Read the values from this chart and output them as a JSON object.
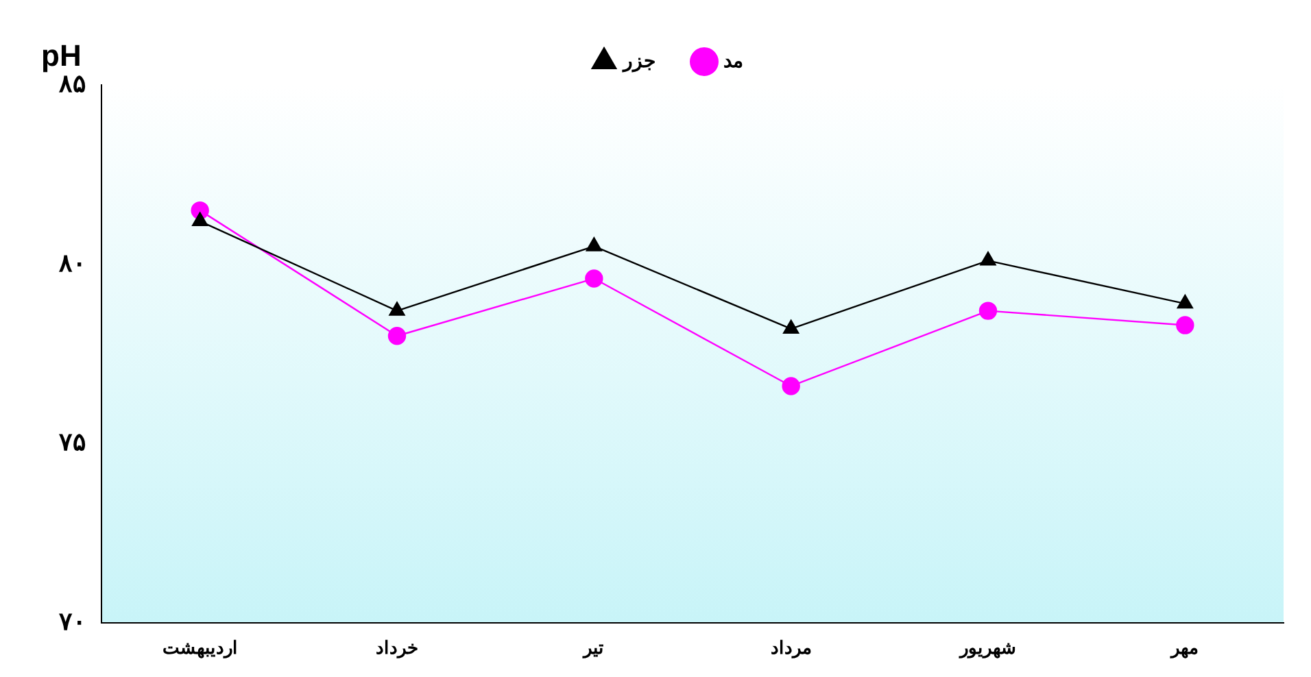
{
  "chart_data": {
    "type": "line",
    "ylabel": "pH",
    "categories": [
      "اردیبهشت",
      "خرداد",
      "تیر",
      "مرداد",
      "شهریور",
      "مهر"
    ],
    "series": [
      {
        "name": "جزر",
        "color": "#000000",
        "marker": "triangle",
        "values": [
          81.2,
          78.7,
          80.5,
          78.2,
          80.1,
          78.9
        ]
      },
      {
        "name": "مد",
        "color": "#ff00ff",
        "marker": "circle",
        "values": [
          81.5,
          78.0,
          79.6,
          76.6,
          78.7,
          78.3
        ]
      }
    ],
    "ylim": [
      70,
      85
    ],
    "yticks": [
      {
        "value": 70,
        "label": "۷۰"
      },
      {
        "value": 75,
        "label": "۷۵"
      },
      {
        "value": 80,
        "label": "۸۰"
      },
      {
        "value": 85,
        "label": "۸۵"
      }
    ],
    "grid": false,
    "legend": "top",
    "line_style": "solid"
  }
}
